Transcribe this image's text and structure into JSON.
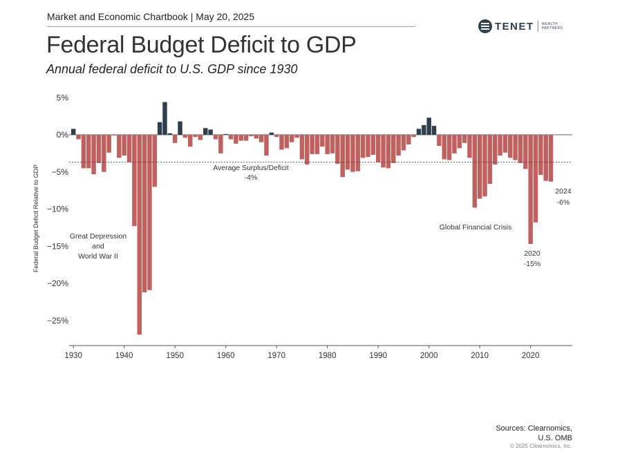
{
  "header": {
    "text": "Market and Economic Chartbook | May 20, 2025"
  },
  "logo": {
    "name": "TENET",
    "sub_line1": "WEALTH",
    "sub_line2": "PARTNERS"
  },
  "title": "Federal Budget Deficit to GDP",
  "subtitle": "Annual federal deficit to U.S. GDP since 1930",
  "sources": {
    "line1": "Sources: Clearnomics,",
    "line2": "U.S. OMB"
  },
  "copyright": "© 2025 Clearnomics, Inc.",
  "colors": {
    "deficit": "#c0615f",
    "surplus": "#2f3e4c",
    "text": "#333333",
    "axis": "#555555"
  },
  "chart_data": {
    "type": "bar",
    "ylabel": "Federal Budget Deficit Relative to GDP",
    "ylim": [
      -28,
      5
    ],
    "yticks": [
      5,
      0,
      -5,
      -10,
      -15,
      -20,
      -25
    ],
    "ytick_labels": [
      "5%",
      "0%",
      "−5%",
      "−10%",
      "−15%",
      "−20%",
      "−25%"
    ],
    "xticks": [
      1930,
      1940,
      1950,
      1960,
      1970,
      1980,
      1990,
      2000,
      2010,
      2020
    ],
    "average": {
      "value": -3.7,
      "label": "Average Surplus/Deficit",
      "value_label": "-4%"
    },
    "annotations": [
      {
        "lines": [
          "Great Depression",
          "and",
          "World War II"
        ]
      },
      {
        "lines": [
          "Global Financial Crisis"
        ]
      },
      {
        "lines": [
          "2020",
          "-15%"
        ]
      },
      {
        "lines": [
          "2024",
          "-6%"
        ]
      }
    ],
    "years": [
      1930,
      1931,
      1932,
      1933,
      1934,
      1935,
      1936,
      1937,
      1938,
      1939,
      1940,
      1941,
      1942,
      1943,
      1944,
      1945,
      1946,
      1947,
      1948,
      1949,
      1950,
      1951,
      1952,
      1953,
      1954,
      1955,
      1956,
      1957,
      1958,
      1959,
      1960,
      1961,
      1962,
      1963,
      1964,
      1965,
      1966,
      1967,
      1968,
      1969,
      1970,
      1971,
      1972,
      1973,
      1974,
      1975,
      1976,
      1977,
      1978,
      1979,
      1980,
      1981,
      1982,
      1983,
      1984,
      1985,
      1986,
      1987,
      1988,
      1989,
      1990,
      1991,
      1992,
      1993,
      1994,
      1995,
      1996,
      1997,
      1998,
      1999,
      2000,
      2001,
      2002,
      2003,
      2004,
      2005,
      2006,
      2007,
      2008,
      2009,
      2010,
      2011,
      2012,
      2013,
      2014,
      2015,
      2016,
      2017,
      2018,
      2019,
      2020,
      2021,
      2022,
      2023,
      2024
    ],
    "values": [
      0.8,
      -0.6,
      -4.5,
      -4.5,
      -5.3,
      -3.8,
      -5.0,
      -2.4,
      -0.1,
      -3.1,
      -2.8,
      -3.7,
      -12.3,
      -26.9,
      -21.2,
      -20.9,
      -7.0,
      1.7,
      4.4,
      0.2,
      -1.1,
      1.8,
      -0.4,
      -1.6,
      -0.3,
      -0.7,
      0.9,
      0.7,
      -0.6,
      -2.5,
      0.1,
      -0.6,
      -1.2,
      -0.8,
      -0.8,
      -0.2,
      -0.5,
      -1.0,
      -2.8,
      0.3,
      -0.3,
      -2.0,
      -1.8,
      -1.0,
      -0.4,
      -3.3,
      -4.0,
      -2.6,
      -2.6,
      -1.6,
      -2.6,
      -2.5,
      -3.9,
      -5.7,
      -4.7,
      -5.0,
      -4.9,
      -3.1,
      -3.0,
      -2.7,
      -3.7,
      -4.4,
      -4.5,
      -3.8,
      -2.8,
      -2.1,
      -1.3,
      -0.3,
      0.8,
      1.3,
      2.3,
      1.2,
      -1.5,
      -3.3,
      -3.4,
      -2.5,
      -1.8,
      -1.1,
      -3.1,
      -9.8,
      -8.6,
      -8.3,
      -6.6,
      -4.0,
      -2.8,
      -2.4,
      -3.1,
      -3.4,
      -3.8,
      -4.6,
      -14.7,
      -11.8,
      -5.4,
      -6.2,
      -6.3
    ]
  }
}
